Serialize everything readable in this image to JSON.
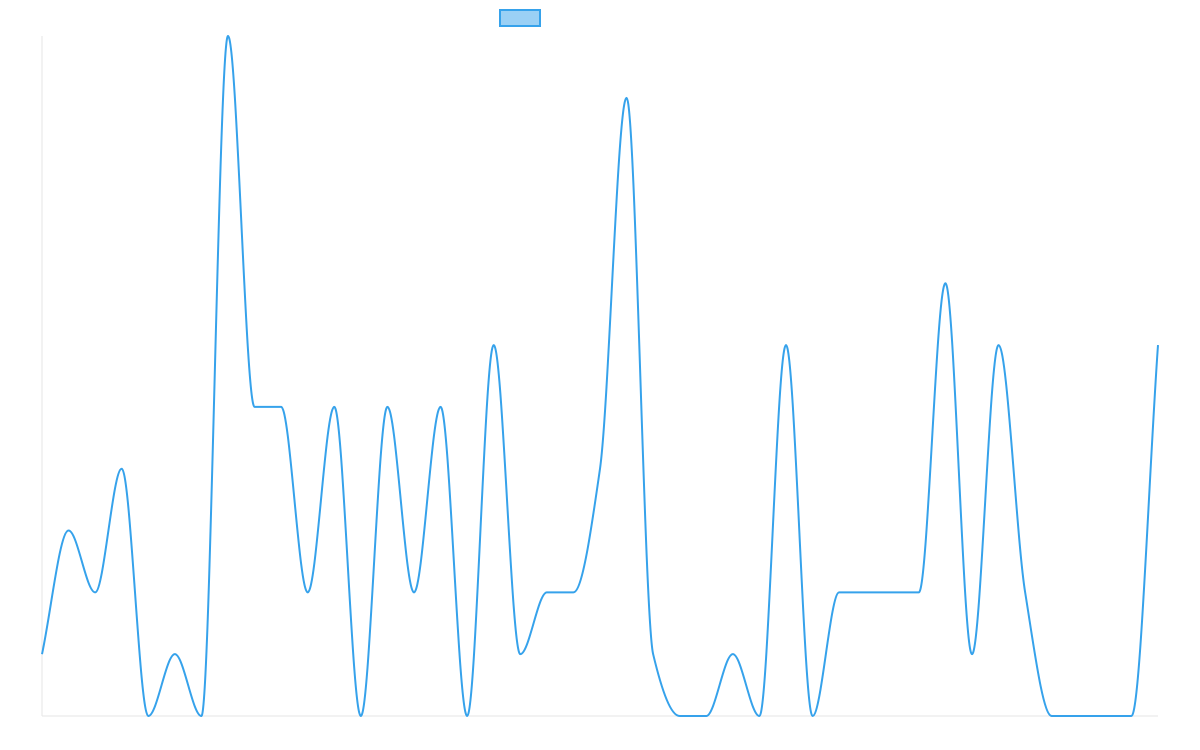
{
  "chart_data": {
    "type": "line",
    "title": "",
    "xlabel": "",
    "ylabel": "",
    "ylim": [
      0,
      11
    ],
    "grid": false,
    "legend_position": "top-center",
    "series": [
      {
        "name": "",
        "color": "#36a2eb",
        "legend_fill": "#9ad0f5",
        "values": [
          1,
          3,
          2,
          4,
          0,
          1,
          0,
          11,
          5,
          5,
          2,
          5,
          0,
          5,
          2,
          5,
          0,
          6,
          1,
          2,
          2,
          4,
          10,
          1,
          0,
          0,
          1,
          0,
          6,
          0,
          2,
          2,
          2,
          2,
          7,
          1,
          6,
          2,
          0,
          0,
          0,
          0,
          6
        ]
      }
    ]
  }
}
